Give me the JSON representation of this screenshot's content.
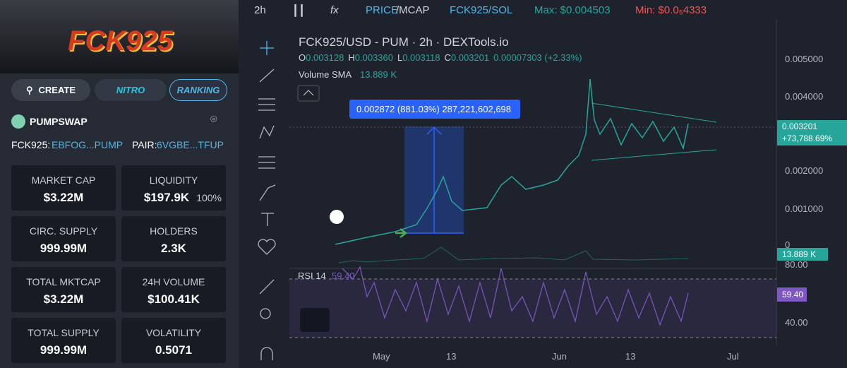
{
  "sidebar": {
    "brand": "FCK925",
    "buttons": [
      "CREATE",
      "NITRO",
      "RANKING"
    ],
    "dex": "PUMPSWAP",
    "token": {
      "label": "FCK925:",
      "address": "EBFOG...PUMP"
    },
    "pair": {
      "label": "PAIR:",
      "address": "6VGBE...TFUP"
    },
    "stats": [
      {
        "label": "MARKET CAP",
        "value": "$3.22M"
      },
      {
        "label": "LIQUIDITY",
        "value": "$197.9K",
        "extra": "100%"
      },
      {
        "label": "CIRC. SUPPLY",
        "value": "999.99M"
      },
      {
        "label": "HOLDERS",
        "value": "2.3K"
      },
      {
        "label": "TOTAL MKTCAP",
        "value": "$3.22M"
      },
      {
        "label": "24H VOLUME",
        "value": "$100.41K"
      },
      {
        "label": "TOTAL SUPPLY",
        "value": "999.99M"
      },
      {
        "label": "VOLATILITY",
        "value": "0.5071"
      }
    ]
  },
  "toolbar": {
    "interval": "2h",
    "price": "PRICE",
    "mcap": "/MCAP",
    "pair": "FCK925/SOL",
    "max": "Max: $0.004503",
    "min": "Min: $0.0₅4333"
  },
  "chart": {
    "title": "FCK925/USD - PUM · 2h · DEXTools.io",
    "ohlc": [
      {
        "key": "O",
        "value": "0.003128"
      },
      {
        "key": "H",
        "value": "0.003360"
      },
      {
        "key": "L",
        "value": "0.003118"
      },
      {
        "key": "C",
        "value": "0.003201"
      }
    ],
    "change": "0.00007303 (+2.33%)",
    "volume_sma": {
      "label": "Volume SMA",
      "value": "13.889 K"
    },
    "measure": "0.002872 (881.03%) 287,221,602,698",
    "price_axis": [
      "0.005000",
      "0.004000",
      "0.002000",
      "0.001000",
      "0"
    ],
    "last_price": "0.003201",
    "last_change": "+73,788.69%",
    "volume_label": "13.889 K",
    "rsi": {
      "label": "RSI 14",
      "value": "59.40",
      "axis": [
        "80.00",
        "40.00"
      ],
      "last": "59.40"
    },
    "time_axis": [
      "May",
      "13",
      "Jun",
      "13",
      "Jul"
    ]
  }
}
